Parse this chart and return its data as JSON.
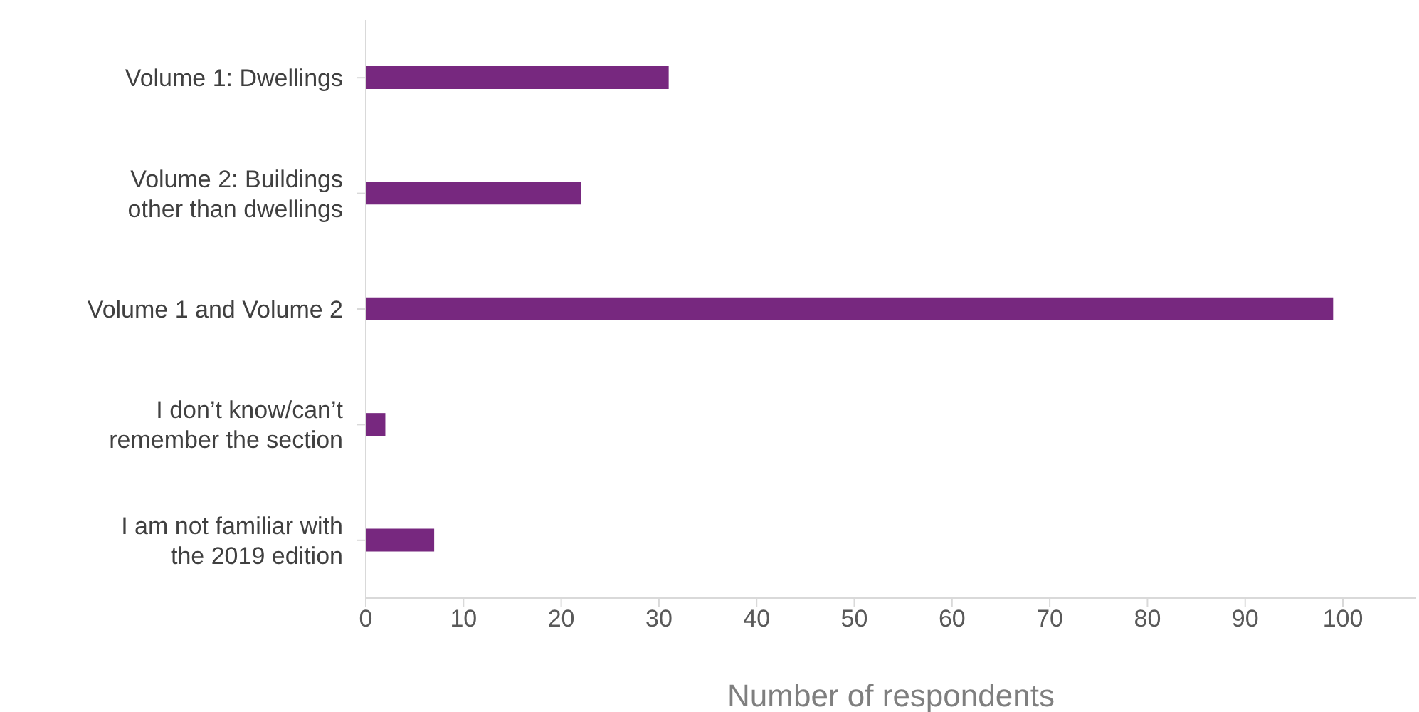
{
  "chart_data": {
    "type": "bar",
    "orientation": "horizontal",
    "xlabel": "Number of respondents",
    "categories": [
      "Volume 1: Dwellings",
      "Volume 2: Buildings other than dwellings",
      "Volume 1 and Volume 2",
      "I don’t know/can’t remember the section",
      "I am not familiar with the 2019 edition"
    ],
    "values": [
      31,
      22,
      99,
      2,
      7
    ],
    "color": "#77287f",
    "xlim": [
      0,
      107.5
    ],
    "xticks": [
      0,
      10,
      20,
      30,
      40,
      50,
      60,
      70,
      80,
      90,
      100
    ],
    "grid": false,
    "legend": false
  }
}
